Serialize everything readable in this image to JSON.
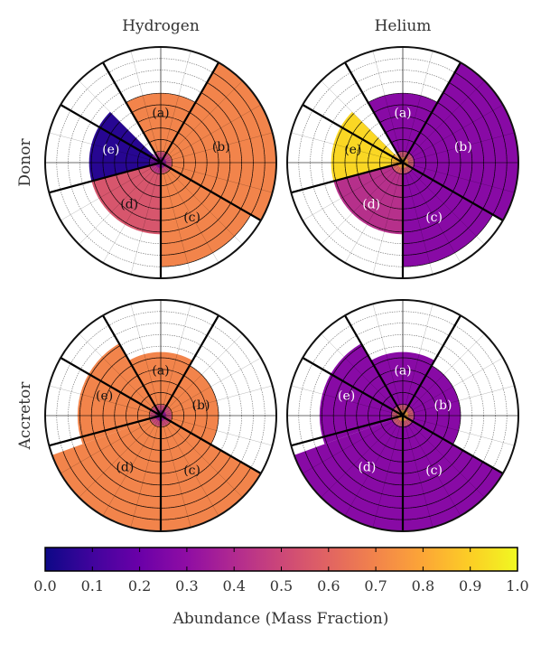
{
  "chart_data": {
    "type": "polar-sector-abundance",
    "column_titles": [
      "Hydrogen",
      "Helium"
    ],
    "row_labels": [
      "Donor",
      "Accretor"
    ],
    "sector_labels": [
      "(a)",
      "(b)",
      "(c)",
      "(d)",
      "(e)"
    ],
    "radial_rings": 10,
    "colormap": "plasma",
    "colorbar": {
      "label": "Abundance (Mass Fraction)",
      "min": 0.0,
      "max": 1.0,
      "ticks": [
        "0.0",
        "0.1",
        "0.2",
        "0.3",
        "0.4",
        "0.5",
        "0.6",
        "0.7",
        "0.8",
        "0.9",
        "1.0"
      ]
    },
    "panels": [
      {
        "row": "Donor",
        "species": "Hydrogen",
        "sectors": [
          {
            "label": "(a)",
            "angle_from": 60,
            "angle_to": 120,
            "extent": 0.6,
            "abundance": 0.7
          },
          {
            "label": "(b)",
            "angle_from": -30,
            "angle_to": 60,
            "extent": 1.0,
            "abundance": 0.7
          },
          {
            "label": "(c)",
            "angle_from": -90,
            "angle_to": -30,
            "extent": 0.9,
            "abundance": 0.7
          },
          {
            "label": "(d)",
            "angle_from": -165,
            "angle_to": -90,
            "extent": 0.62,
            "abundance": 0.55
          },
          {
            "label": "(e)",
            "angle_from": 135,
            "angle_to": 195,
            "extent": 0.62,
            "abundance": 0.05
          }
        ]
      },
      {
        "row": "Donor",
        "species": "Helium",
        "sectors": [
          {
            "label": "(a)",
            "angle_from": 60,
            "angle_to": 120,
            "extent": 0.6,
            "abundance": 0.28
          },
          {
            "label": "(b)",
            "angle_from": -30,
            "angle_to": 60,
            "extent": 1.0,
            "abundance": 0.28
          },
          {
            "label": "(c)",
            "angle_from": -90,
            "angle_to": -30,
            "extent": 0.9,
            "abundance": 0.28
          },
          {
            "label": "(d)",
            "angle_from": -165,
            "angle_to": -90,
            "extent": 0.62,
            "abundance": 0.42
          },
          {
            "label": "(e)",
            "angle_from": 135,
            "angle_to": 195,
            "extent": 0.62,
            "abundance": 0.92
          }
        ]
      },
      {
        "row": "Accretor",
        "species": "Hydrogen",
        "sectors": [
          {
            "label": "(a)",
            "angle_from": 60,
            "angle_to": 120,
            "extent": 0.55,
            "abundance": 0.7
          },
          {
            "label": "(b)",
            "angle_from": -30,
            "angle_to": 60,
            "extent": 0.5,
            "abundance": 0.7
          },
          {
            "label": "(c)",
            "angle_from": -90,
            "angle_to": -30,
            "extent": 1.0,
            "abundance": 0.7
          },
          {
            "label": "(d)",
            "angle_from": -160,
            "angle_to": -90,
            "extent": 1.0,
            "abundance": 0.7
          },
          {
            "label": "(e)",
            "angle_from": 120,
            "angle_to": 200,
            "extent": 0.72,
            "abundance": 0.7
          }
        ]
      },
      {
        "row": "Accretor",
        "species": "Helium",
        "sectors": [
          {
            "label": "(a)",
            "angle_from": 60,
            "angle_to": 120,
            "extent": 0.55,
            "abundance": 0.28
          },
          {
            "label": "(b)",
            "angle_from": -30,
            "angle_to": 60,
            "extent": 0.5,
            "abundance": 0.28
          },
          {
            "label": "(c)",
            "angle_from": -90,
            "angle_to": -30,
            "extent": 1.0,
            "abundance": 0.28
          },
          {
            "label": "(d)",
            "angle_from": -160,
            "angle_to": -90,
            "extent": 1.0,
            "abundance": 0.28
          },
          {
            "label": "(e)",
            "angle_from": 120,
            "angle_to": 200,
            "extent": 0.72,
            "abundance": 0.28
          }
        ]
      }
    ],
    "sector_boundaries_deg": [
      60,
      120,
      150,
      195,
      270,
      330
    ]
  }
}
